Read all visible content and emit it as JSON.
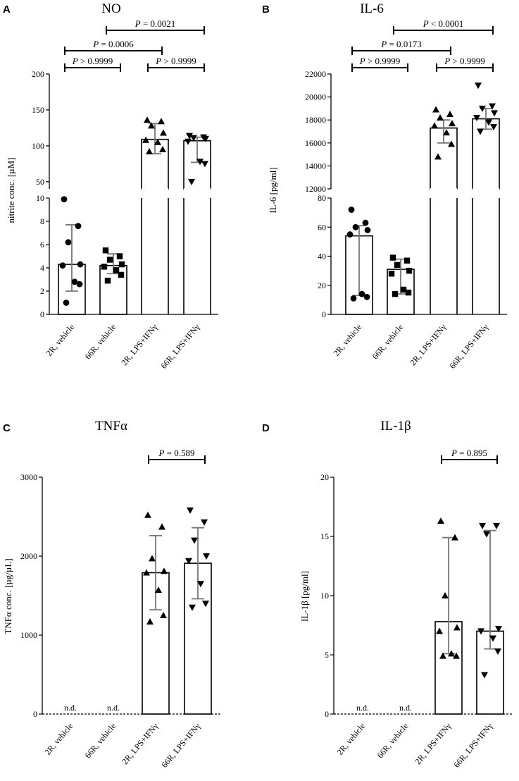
{
  "chart_data": [
    {
      "panel": "A",
      "type": "bar",
      "title": "NO",
      "ylabel": "nitrite conc. [µM]",
      "categories": [
        "2R, vehicle",
        "66R, vehicle",
        "2R, LPS+IFNγ",
        "66R, LPS+IFNγ"
      ],
      "axis_break": {
        "lower": {
          "ylim": [
            0,
            10
          ],
          "ticks": [
            "0",
            "2",
            "4",
            "6",
            "8",
            "10"
          ]
        },
        "upper": {
          "ylim": [
            40,
            200
          ],
          "ticks": [
            "50",
            "100",
            "150",
            "200"
          ]
        }
      },
      "bars": [
        {
          "mean": 4.3,
          "sd_low": 2.0,
          "sd_high": 7.7,
          "marker": "circle",
          "points": [
            9.9,
            7.6,
            6.2,
            4.3,
            4.2,
            2.8,
            2.6,
            1.0
          ]
        },
        {
          "mean": 4.2,
          "sd_low": 3.5,
          "sd_high": 5.2,
          "marker": "square",
          "points": [
            5.5,
            5.0,
            4.7,
            4.3,
            4.1,
            3.8,
            3.4,
            2.9
          ]
        },
        {
          "mean": 109,
          "sd_low": 89,
          "sd_high": 131,
          "marker": "triangle-up",
          "points": [
            136,
            134,
            128,
            118,
            108,
            105,
            95,
            92
          ]
        },
        {
          "mean": 107,
          "sd_low": 77,
          "sd_high": 112,
          "marker": "triangle-down",
          "points": [
            114,
            112,
            111,
            110,
            106,
            78,
            75,
            50
          ]
        }
      ],
      "comparisons": [
        {
          "from": 0,
          "to": 1,
          "label": "P > 0.9999",
          "level": 0
        },
        {
          "from": 2,
          "to": 3,
          "label": "P > 0.9999",
          "level": 0
        },
        {
          "from": 0,
          "to": 2,
          "label": "P = 0.0006",
          "level": 1
        },
        {
          "from": 1,
          "to": 3,
          "label": "P = 0.0021",
          "level": 2
        }
      ]
    },
    {
      "panel": "B",
      "type": "bar",
      "title": "IL-6",
      "ylabel": "IL-6 [pg/ml]",
      "categories": [
        "2R, vehicle",
        "66R, vehicle",
        "2R, LPS+IFNγ",
        "66R, LPS+IFNγ"
      ],
      "axis_break": {
        "lower": {
          "ylim": [
            0,
            80
          ],
          "ticks": [
            "0",
            "20",
            "40",
            "60",
            "80"
          ]
        },
        "upper": {
          "ylim": [
            12000,
            22000
          ],
          "ticks": [
            "12000",
            "14000",
            "16000",
            "18000",
            "20000",
            "22000"
          ]
        }
      },
      "bars": [
        {
          "mean": 54,
          "sd_low": 13,
          "sd_high": 61,
          "marker": "circle",
          "points": [
            72,
            63,
            60,
            58,
            55,
            14,
            12,
            11
          ]
        },
        {
          "mean": 31,
          "sd_low": 14,
          "sd_high": 38,
          "marker": "square",
          "points": [
            39,
            37,
            34,
            30,
            28,
            17,
            15,
            14
          ]
        },
        {
          "mean": 17300,
          "sd_low": 16000,
          "sd_high": 18000,
          "marker": "triangle-up",
          "points": [
            18900,
            18500,
            18200,
            17700,
            17500,
            16900,
            15900,
            14800
          ]
        },
        {
          "mean": 18100,
          "sd_low": 17200,
          "sd_high": 19000,
          "marker": "triangle-down",
          "points": [
            21000,
            19200,
            19000,
            18600,
            18200,
            17800,
            17400,
            17000
          ]
        }
      ],
      "comparisons": [
        {
          "from": 0,
          "to": 1,
          "label": "P > 0.9999",
          "level": 0
        },
        {
          "from": 2,
          "to": 3,
          "label": "P > 0.9999",
          "level": 0
        },
        {
          "from": 0,
          "to": 2,
          "label": "P = 0.0173",
          "level": 1
        },
        {
          "from": 1,
          "to": 3,
          "label": "P < 0.0001",
          "level": 2
        }
      ]
    },
    {
      "panel": "C",
      "type": "bar",
      "title": "TNFα",
      "ylabel": "TNFα conc. [µg/µL]",
      "categories": [
        "2R, vehicle",
        "66R, vehicle",
        "2R, LPS+IFNγ",
        "66R, LPS+IFNγ"
      ],
      "ylim": [
        0,
        3000
      ],
      "ticks": [
        "0",
        "1000",
        "2000",
        "3000"
      ],
      "bars": [
        {
          "nd": "n.d."
        },
        {
          "nd": "n.d."
        },
        {
          "mean": 1790,
          "sd_low": 1320,
          "sd_high": 2260,
          "marker": "triangle-up",
          "points": [
            2520,
            2370,
            1970,
            1810,
            1790,
            1570,
            1250,
            1170
          ]
        },
        {
          "mean": 1910,
          "sd_low": 1460,
          "sd_high": 2360,
          "marker": "triangle-down",
          "points": [
            2580,
            2430,
            2200,
            2000,
            1940,
            1650,
            1400,
            1350
          ]
        }
      ],
      "comparisons": [
        {
          "from": 2,
          "to": 3,
          "label": "P = 0.589",
          "level": 0
        }
      ]
    },
    {
      "panel": "D",
      "type": "bar",
      "title": "IL-1β",
      "ylabel": "IL-1β [pg/ml]",
      "categories": [
        "2R, vehicle",
        "66R, vehicle",
        "2R, LPS+IFNγ",
        "66R, LPS+IFNγ"
      ],
      "ylim": [
        0,
        20
      ],
      "ticks": [
        "0",
        "5",
        "10",
        "15",
        "20"
      ],
      "bars": [
        {
          "nd": "n.d."
        },
        {
          "nd": "n.d."
        },
        {
          "mean": 7.8,
          "sd_low": 5.1,
          "sd_high": 14.9,
          "marker": "triangle-up",
          "points": [
            16.3,
            14.9,
            10.0,
            7.3,
            7.0,
            5.1,
            4.9,
            4.9
          ]
        },
        {
          "mean": 7.0,
          "sd_low": 5.5,
          "sd_high": 15.5,
          "marker": "triangle-down",
          "points": [
            15.9,
            15.9,
            15.2,
            7.2,
            7.0,
            6.4,
            5.3,
            3.3
          ]
        }
      ],
      "comparisons": [
        {
          "from": 2,
          "to": 3,
          "label": "P = 0.895",
          "level": 0
        }
      ]
    }
  ]
}
